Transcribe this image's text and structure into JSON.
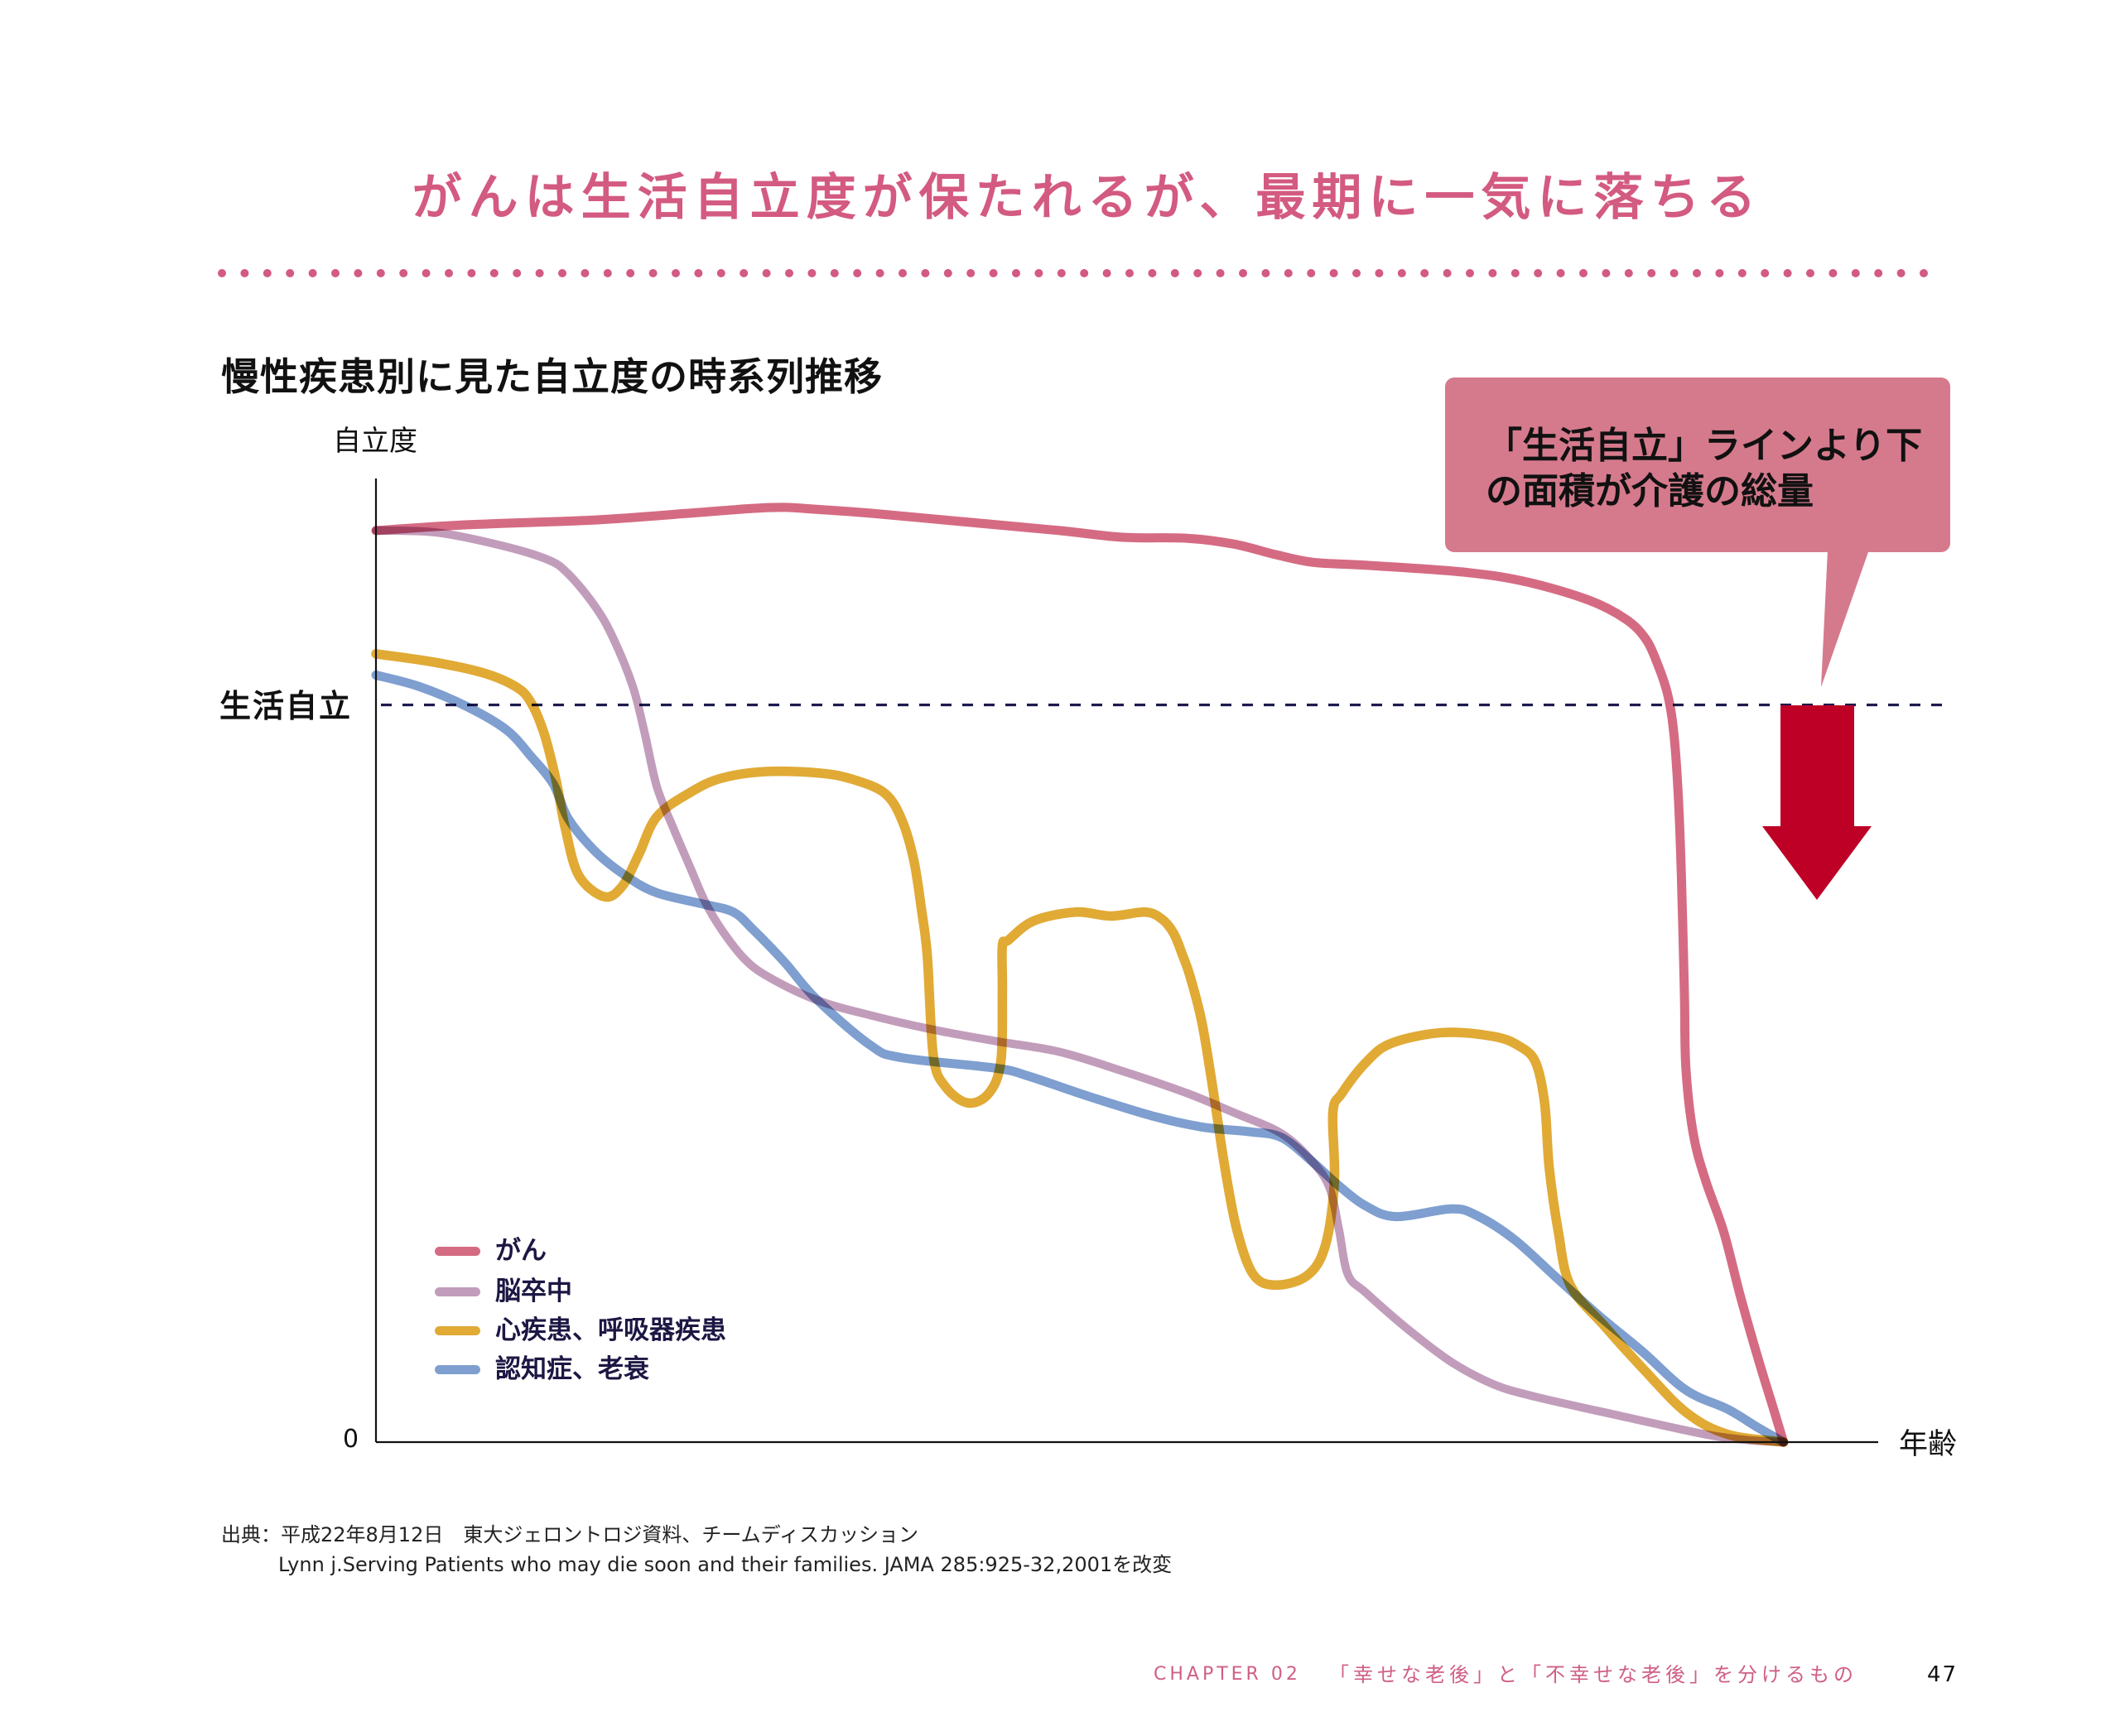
{
  "headline": "がんは生活自立度が保たれるが、最期に一気に落ちる",
  "figure": {
    "title": "慢性疾患別に見た自立度の時系列推移",
    "y_axis_label": "自立度",
    "x_axis_label": "年齢",
    "zero_label": "0",
    "reference_label": "生活自立",
    "callout": {
      "line1": "「生活自立」ラインより下",
      "line2": "の面積が介護の総量"
    }
  },
  "source": {
    "line1": "出典：平成22年8月12日　東大ジェロントロジ資料、チームディスカッション",
    "line2": "Lynn j.Serving Patients who may die soon and their families. JAMA 285:925-32,2001を改変"
  },
  "footer": {
    "chapter_label": "CHAPTER 02",
    "chapter_title": "「幸せな老後」と「不幸せな老後」を分けるもの",
    "page_number": "47"
  },
  "theme": {
    "accent_pink": "#d35a80",
    "callout_fill": "#d57a8c",
    "arrow_red": "#be0026",
    "reference_line": "#1d1a4e",
    "legend_text": "#1c1743"
  },
  "chart_data": {
    "type": "line",
    "title": "慢性疾患別に見た自立度の時系列推移",
    "xlabel": "年齢",
    "ylabel": "自立度",
    "xlim": [
      0,
      100
    ],
    "ylim": [
      0,
      100
    ],
    "value_scale": "normalized estimate (axes have no numeric ticks; 0 = baseline, 100 = top of y-axis)",
    "y_ticks": [
      {
        "value": 0,
        "label": "0"
      }
    ],
    "grid": false,
    "legend_position": "lower-left, inside plot",
    "reference_lines": [
      {
        "axis": "y",
        "value": 76.5,
        "label": "生活自立",
        "style": "dashed",
        "color": "#1d1a4e"
      }
    ],
    "annotations": [
      {
        "type": "callout",
        "text": "「生活自立」ラインより下の面積が介護の総量",
        "points_to": "生活自立 line, right end"
      },
      {
        "type": "arrow",
        "direction": "down",
        "from_y": 76.5,
        "color": "#be0026"
      }
    ],
    "series": [
      {
        "name": "がん",
        "color": "#d56b83",
        "width": 11,
        "points": [
          [
            0,
            94.6
          ],
          [
            6.1,
            95.2
          ],
          [
            14.6,
            95.7
          ],
          [
            20.9,
            96.4
          ],
          [
            25.1,
            96.9
          ],
          [
            27.2,
            97.0
          ],
          [
            29.3,
            96.8
          ],
          [
            32.9,
            96.4
          ],
          [
            39.2,
            95.5
          ],
          [
            45.5,
            94.6
          ],
          [
            49.7,
            93.9
          ],
          [
            54.0,
            93.8
          ],
          [
            57.1,
            93.2
          ],
          [
            59.9,
            92.1
          ],
          [
            62.4,
            91.3
          ],
          [
            65.9,
            91.0
          ],
          [
            72.3,
            90.3
          ],
          [
            76.5,
            89.3
          ],
          [
            80.7,
            87.4
          ],
          [
            83.2,
            85.4
          ],
          [
            84.5,
            83.4
          ],
          [
            85.3,
            80.8
          ],
          [
            86.0,
            77.5
          ],
          [
            86.4,
            73.5
          ],
          [
            86.7,
            66.9
          ],
          [
            86.9,
            58.6
          ],
          [
            87.1,
            46.6
          ],
          [
            87.2,
            38.8
          ],
          [
            87.7,
            31.9
          ],
          [
            88.5,
            27.2
          ],
          [
            89.7,
            21.9
          ],
          [
            90.8,
            15.3
          ],
          [
            92.0,
            8.7
          ],
          [
            93.1,
            3.1
          ],
          [
            93.7,
            0
          ]
        ]
      },
      {
        "name": "脳卒中",
        "color": "#c29dbb",
        "width": 10,
        "points": [
          [
            0,
            94.6
          ],
          [
            4.0,
            94.4
          ],
          [
            8.2,
            93.1
          ],
          [
            11.4,
            91.6
          ],
          [
            12.8,
            90.1
          ],
          [
            14.6,
            86.7
          ],
          [
            15.8,
            83.4
          ],
          [
            17.1,
            78.4
          ],
          [
            17.9,
            73.5
          ],
          [
            18.7,
            68.0
          ],
          [
            19.8,
            63.7
          ],
          [
            20.9,
            59.7
          ],
          [
            21.9,
            56.1
          ],
          [
            23.0,
            53.2
          ],
          [
            24.5,
            50.2
          ],
          [
            26.1,
            48.3
          ],
          [
            29.3,
            45.9
          ],
          [
            32.9,
            44.3
          ],
          [
            37.1,
            42.8
          ],
          [
            41.3,
            41.6
          ],
          [
            45.5,
            40.5
          ],
          [
            49.7,
            38.5
          ],
          [
            54.0,
            36.2
          ],
          [
            57.1,
            34.2
          ],
          [
            60.3,
            32.0
          ],
          [
            62.4,
            29.0
          ],
          [
            63.5,
            26.3
          ],
          [
            64.1,
            22.1
          ],
          [
            64.7,
            17.4
          ],
          [
            65.9,
            15.5
          ],
          [
            68.7,
            11.7
          ],
          [
            71.6,
            8.3
          ],
          [
            74.4,
            6.0
          ],
          [
            77.2,
            4.7
          ],
          [
            82.9,
            2.7
          ],
          [
            88.5,
            0.8
          ],
          [
            91.4,
            0.2
          ],
          [
            93.7,
            0
          ]
        ]
      },
      {
        "name": "心疾患、呼吸器疾患",
        "color": "#e0aa35",
        "width": 11.5,
        "points": [
          [
            0,
            81.8
          ],
          [
            4.0,
            80.9
          ],
          [
            7.2,
            79.8
          ],
          [
            9.3,
            78.4
          ],
          [
            10.3,
            76.8
          ],
          [
            11.2,
            73.5
          ],
          [
            12.0,
            68.6
          ],
          [
            12.6,
            63.7
          ],
          [
            13.5,
            58.8
          ],
          [
            15.2,
            56.6
          ],
          [
            16.4,
            57.7
          ],
          [
            17.5,
            61.0
          ],
          [
            18.7,
            64.9
          ],
          [
            20.9,
            67.4
          ],
          [
            23.0,
            68.9
          ],
          [
            26.1,
            69.6
          ],
          [
            29.7,
            69.4
          ],
          [
            31.9,
            68.7
          ],
          [
            33.9,
            67.3
          ],
          [
            35.0,
            64.6
          ],
          [
            35.8,
            60.4
          ],
          [
            36.3,
            55.4
          ],
          [
            36.7,
            50.5
          ],
          [
            37.1,
            40.1
          ],
          [
            37.9,
            36.9
          ],
          [
            39.4,
            35.2
          ],
          [
            40.8,
            36.2
          ],
          [
            41.6,
            39.5
          ],
          [
            41.7,
            46.7
          ],
          [
            41.7,
            51.5
          ],
          [
            42.1,
            52.1
          ],
          [
            43.8,
            54.1
          ],
          [
            46.6,
            55.0
          ],
          [
            48.9,
            54.6
          ],
          [
            51.2,
            55.0
          ],
          [
            52.3,
            54.3
          ],
          [
            53.1,
            52.8
          ],
          [
            53.7,
            50.5
          ],
          [
            54.2,
            48.3
          ],
          [
            55.0,
            43.4
          ],
          [
            55.8,
            35.8
          ],
          [
            56.5,
            28.6
          ],
          [
            57.3,
            22.1
          ],
          [
            58.4,
            17.4
          ],
          [
            59.9,
            16.3
          ],
          [
            62.0,
            17.3
          ],
          [
            63.2,
            20.4
          ],
          [
            63.8,
            27.0
          ],
          [
            63.7,
            34.2
          ],
          [
            64.3,
            36.2
          ],
          [
            65.9,
            39.4
          ],
          [
            67.6,
            41.4
          ],
          [
            71.0,
            42.5
          ],
          [
            74.4,
            42.1
          ],
          [
            76.1,
            41.1
          ],
          [
            77.2,
            39.4
          ],
          [
            77.8,
            35.1
          ],
          [
            78.1,
            28.5
          ],
          [
            78.7,
            21.9
          ],
          [
            79.5,
            16.3
          ],
          [
            81.8,
            12.0
          ],
          [
            84.3,
            7.7
          ],
          [
            87.2,
            3.1
          ],
          [
            90.0,
            0.8
          ],
          [
            93.7,
            0
          ]
        ]
      },
      {
        "name": "認知症、老衰",
        "color": "#7e9fcf",
        "width": 11,
        "points": [
          [
            0,
            79.6
          ],
          [
            2.9,
            78.4
          ],
          [
            6.1,
            76.3
          ],
          [
            8.7,
            73.9
          ],
          [
            10.3,
            71.2
          ],
          [
            11.8,
            68.3
          ],
          [
            12.8,
            64.7
          ],
          [
            14.6,
            61.3
          ],
          [
            16.6,
            58.8
          ],
          [
            18.7,
            57.0
          ],
          [
            21.9,
            55.8
          ],
          [
            23.8,
            55.0
          ],
          [
            25.1,
            53.2
          ],
          [
            27.2,
            49.8
          ],
          [
            29.3,
            46.0
          ],
          [
            32.9,
            41.2
          ],
          [
            35.0,
            39.9
          ],
          [
            41.3,
            38.8
          ],
          [
            43.4,
            38.0
          ],
          [
            47.6,
            35.8
          ],
          [
            51.8,
            33.8
          ],
          [
            55.0,
            32.7
          ],
          [
            58.2,
            32.2
          ],
          [
            60.3,
            31.6
          ],
          [
            62.4,
            29.0
          ],
          [
            64.1,
            26.6
          ],
          [
            65.9,
            24.5
          ],
          [
            67.9,
            23.4
          ],
          [
            71.6,
            24.2
          ],
          [
            73.3,
            23.5
          ],
          [
            75.8,
            21.0
          ],
          [
            78.7,
            16.9
          ],
          [
            81.5,
            13.0
          ],
          [
            84.3,
            9.4
          ],
          [
            87.2,
            5.4
          ],
          [
            90.0,
            3.4
          ],
          [
            92.0,
            1.5
          ],
          [
            93.7,
            0
          ]
        ]
      }
    ]
  }
}
